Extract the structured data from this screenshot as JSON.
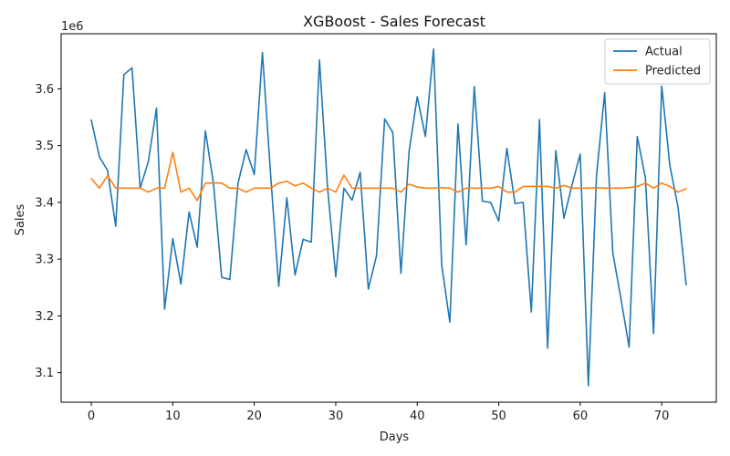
{
  "chart_data": {
    "type": "line",
    "title": "XGBoost - Sales Forecast",
    "xlabel": "Days",
    "ylabel": "Sales",
    "y_offset_label": "1e6",
    "xlim": [
      -3.7,
      76.7
    ],
    "ylim": [
      3.048,
      3.697
    ],
    "x_ticks": [
      0,
      10,
      20,
      30,
      40,
      50,
      60,
      70
    ],
    "x_tick_labels": [
      "0",
      "10",
      "20",
      "30",
      "40",
      "50",
      "60",
      "70"
    ],
    "y_ticks": [
      3.1,
      3.2,
      3.3,
      3.4,
      3.5,
      3.6
    ],
    "y_tick_labels": [
      "3.1",
      "3.2",
      "3.3",
      "3.4",
      "3.5",
      "3.6"
    ],
    "grid": false,
    "legend_position": "top-right",
    "x": [
      0,
      1,
      2,
      3,
      4,
      5,
      6,
      7,
      8,
      9,
      10,
      11,
      12,
      13,
      14,
      15,
      16,
      17,
      18,
      19,
      20,
      21,
      22,
      23,
      24,
      25,
      26,
      27,
      28,
      29,
      30,
      31,
      32,
      33,
      34,
      35,
      36,
      37,
      38,
      39,
      40,
      41,
      42,
      43,
      44,
      45,
      46,
      47,
      48,
      49,
      50,
      51,
      52,
      53,
      54,
      55,
      56,
      57,
      58,
      59,
      60,
      61,
      62,
      63,
      64,
      65,
      66,
      67,
      68,
      69,
      70,
      71,
      72,
      73
    ],
    "series": [
      {
        "name": "Actual",
        "color": "#1f77b4",
        "values": [
          3.545,
          3.48,
          3.456,
          3.358,
          3.625,
          3.637,
          3.425,
          3.472,
          3.566,
          3.212,
          3.336,
          3.256,
          3.383,
          3.321,
          3.526,
          3.433,
          3.268,
          3.264,
          3.433,
          3.493,
          3.449,
          3.664,
          3.45,
          3.252,
          3.408,
          3.272,
          3.335,
          3.33,
          3.651,
          3.425,
          3.269,
          3.425,
          3.404,
          3.453,
          3.247,
          3.306,
          3.547,
          3.523,
          3.275,
          3.49,
          3.586,
          3.516,
          3.67,
          3.29,
          3.189,
          3.538,
          3.325,
          3.604,
          3.402,
          3.4,
          3.367,
          3.495,
          3.398,
          3.4,
          3.207,
          3.546,
          3.143,
          3.491,
          3.372,
          3.431,
          3.485,
          3.077,
          3.447,
          3.593,
          3.311,
          3.23,
          3.145,
          3.516,
          3.443,
          3.169,
          3.605,
          3.465,
          3.392,
          3.255
        ]
      },
      {
        "name": "Predicted",
        "color": "#ff7f0e",
        "values": [
          3.442,
          3.425,
          3.447,
          3.425,
          3.425,
          3.425,
          3.425,
          3.418,
          3.425,
          3.425,
          3.488,
          3.418,
          3.425,
          3.403,
          3.434,
          3.434,
          3.434,
          3.425,
          3.425,
          3.418,
          3.425,
          3.425,
          3.425,
          3.434,
          3.437,
          3.429,
          3.434,
          3.425,
          3.418,
          3.425,
          3.418,
          3.448,
          3.425,
          3.425,
          3.425,
          3.425,
          3.425,
          3.425,
          3.418,
          3.432,
          3.427,
          3.425,
          3.425,
          3.426,
          3.425,
          3.418,
          3.425,
          3.425,
          3.425,
          3.425,
          3.428,
          3.418,
          3.418,
          3.428,
          3.428,
          3.428,
          3.428,
          3.425,
          3.43,
          3.425,
          3.425,
          3.425,
          3.426,
          3.425,
          3.425,
          3.425,
          3.426,
          3.428,
          3.434,
          3.425,
          3.434,
          3.428,
          3.418,
          3.424
        ]
      }
    ]
  }
}
